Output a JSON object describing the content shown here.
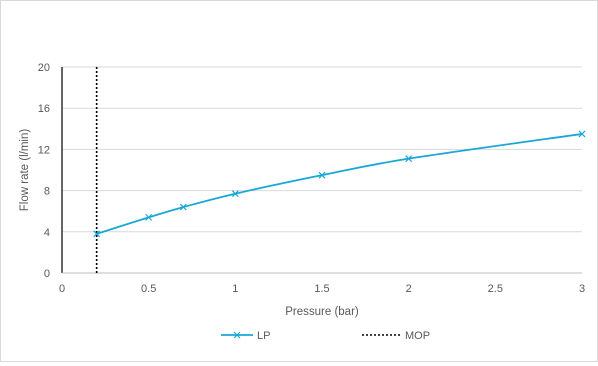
{
  "chart_data": {
    "type": "line",
    "xlabel": "Pressure (bar)",
    "ylabel": "Flow rate (l/min)",
    "xlim": [
      0,
      3
    ],
    "ylim": [
      0,
      20
    ],
    "x_ticks": [
      0,
      0.5,
      1,
      1.5,
      2,
      2.5,
      3
    ],
    "x_tick_labels": [
      "0",
      "0.5",
      "1",
      "1.5",
      "2",
      "2.5",
      "3"
    ],
    "y_ticks": [
      0,
      4,
      8,
      12,
      16,
      20
    ],
    "y_tick_labels": [
      "0",
      "4",
      "8",
      "12",
      "16",
      "20"
    ],
    "grid": "horizontal",
    "legend_position": "bottom",
    "series": [
      {
        "name": "LP",
        "color": "#1aa7d8",
        "marker": "x",
        "x": [
          0.2,
          0.5,
          0.7,
          1.0,
          1.5,
          2.0,
          3.0
        ],
        "y": [
          3.8,
          5.4,
          6.4,
          7.7,
          9.5,
          11.1,
          13.5
        ]
      },
      {
        "name": "MOP",
        "color": "#000000",
        "style": "dotted",
        "x": [
          0.2,
          0.2
        ],
        "y": [
          0,
          20
        ]
      }
    ]
  }
}
